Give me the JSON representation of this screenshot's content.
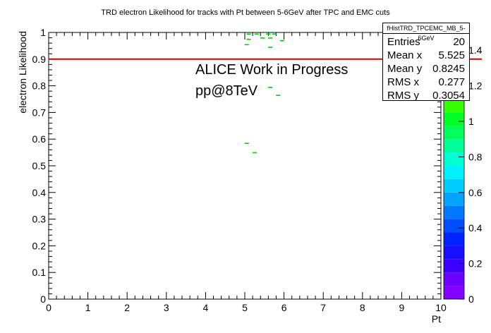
{
  "chart_data": {
    "type": "heatmap",
    "title": "TRD electron Likelihood for tracks with Pt between 5-6GeV after TPC and EMC cuts",
    "xlabel": "Pt",
    "ylabel": "electron Likelihood",
    "xlim": [
      0,
      10
    ],
    "ylim": [
      0,
      1
    ],
    "x_ticks": [
      "0",
      "1",
      "2",
      "3",
      "4",
      "5",
      "6",
      "7",
      "8",
      "9",
      "10"
    ],
    "y_ticks": [
      "0",
      "0.1",
      "0.2",
      "0.3",
      "0.4",
      "0.5",
      "0.6",
      "0.7",
      "0.8",
      "0.9",
      "1"
    ],
    "grid": false,
    "points": [
      {
        "x": 5.1,
        "y": 0.995
      },
      {
        "x": 5.3,
        "y": 0.995
      },
      {
        "x": 5.6,
        "y": 0.995
      },
      {
        "x": 5.75,
        "y": 0.995
      },
      {
        "x": 5.1,
        "y": 0.975
      },
      {
        "x": 5.45,
        "y": 0.98
      },
      {
        "x": 5.65,
        "y": 0.98
      },
      {
        "x": 5.95,
        "y": 0.97
      },
      {
        "x": 5.05,
        "y": 0.955
      },
      {
        "x": 5.65,
        "y": 0.945
      },
      {
        "x": 5.65,
        "y": 0.795
      },
      {
        "x": 5.85,
        "y": 0.765
      },
      {
        "x": 5.05,
        "y": 0.585
      },
      {
        "x": 5.25,
        "y": 0.55
      }
    ],
    "cut_line": {
      "y": 0.9,
      "color": "#d40000"
    },
    "annotations": [
      "ALICE Work in Progress",
      "pp@8TeV"
    ],
    "palette": {
      "min": 0,
      "max": 1.5,
      "ticks": [
        "0",
        "0.2",
        "0.4",
        "0.6",
        "0.8",
        "1",
        "1.2",
        "1.4"
      ],
      "colors": [
        "#8400ff",
        "#6a00ff",
        "#3b00ff",
        "#1a0eff",
        "#0022ff",
        "#004dff",
        "#0078ff",
        "#00a3ff",
        "#00ccff",
        "#00f0ff",
        "#00ffd5",
        "#00ff99",
        "#00ff5a",
        "#00ff22",
        "#33ff00",
        "#66ff00",
        "#99ff00",
        "#c8ff00",
        "#e8ff00",
        "#ffff00"
      ]
    }
  },
  "stats": {
    "title": "fHistTRD_TPCEMC_MB_5-6GeV",
    "rows": [
      {
        "label": "Entries",
        "value": "20"
      },
      {
        "label": "Mean x",
        "value": "5.525"
      },
      {
        "label": "Mean y",
        "value": "0.8245"
      },
      {
        "label": "RMS x",
        "value": "0.277"
      },
      {
        "label": "RMS y",
        "value": "0.3054"
      }
    ]
  },
  "colors": {
    "marker": "#00cc00",
    "cut_line": "#d40000"
  }
}
